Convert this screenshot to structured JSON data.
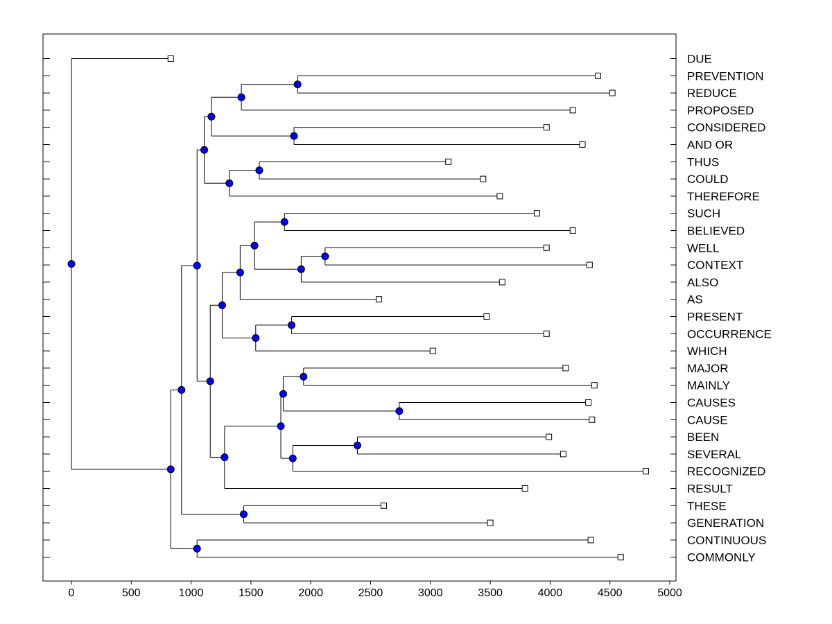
{
  "chart_data": {
    "type": "dendrogram",
    "title": "",
    "xlabel": "",
    "ylabel": "",
    "xlim": [
      -240,
      5030
    ],
    "xticks": [
      0,
      500,
      1000,
      1500,
      2000,
      2500,
      3000,
      3500,
      4000,
      4500,
      5000
    ],
    "grid": false,
    "leaves": [
      {
        "label": "DUE",
        "x": 830
      },
      {
        "label": "PREVENTION",
        "x": 4400
      },
      {
        "label": "REDUCE",
        "x": 4520
      },
      {
        "label": "PROPOSED",
        "x": 4190
      },
      {
        "label": "CONSIDERED",
        "x": 3970
      },
      {
        "label": "AND OR",
        "x": 4270
      },
      {
        "label": "THUS",
        "x": 3150
      },
      {
        "label": "COULD",
        "x": 3440
      },
      {
        "label": "THEREFORE",
        "x": 3580
      },
      {
        "label": "SUCH",
        "x": 3890
      },
      {
        "label": "BELIEVED",
        "x": 4190
      },
      {
        "label": "WELL",
        "x": 3970
      },
      {
        "label": "CONTEXT",
        "x": 4330
      },
      {
        "label": "ALSO",
        "x": 3600
      },
      {
        "label": "AS",
        "x": 2570
      },
      {
        "label": "PRESENT",
        "x": 3470
      },
      {
        "label": "OCCURRENCE",
        "x": 3970
      },
      {
        "label": "WHICH",
        "x": 3020
      },
      {
        "label": "MAJOR",
        "x": 4130
      },
      {
        "label": "MAINLY",
        "x": 4370
      },
      {
        "label": "CAUSES",
        "x": 4320
      },
      {
        "label": "CAUSE",
        "x": 4350
      },
      {
        "label": "BEEN",
        "x": 3990
      },
      {
        "label": "SEVERAL",
        "x": 4110
      },
      {
        "label": "RECOGNIZED",
        "x": 4800
      },
      {
        "label": "RESULT",
        "x": 3790
      },
      {
        "label": "THESE",
        "x": 2610
      },
      {
        "label": "GENERATION",
        "x": 3500
      },
      {
        "label": "CONTINUOUS",
        "x": 4340
      },
      {
        "label": "COMMONLY",
        "x": 4590
      }
    ],
    "merges": [
      {
        "id": "n1",
        "x": 1890,
        "children": [
          "L1",
          "L2"
        ]
      },
      {
        "id": "n2",
        "x": 1420,
        "children": [
          "n1",
          "L3"
        ]
      },
      {
        "id": "n3",
        "x": 1860,
        "children": [
          "L4",
          "L5"
        ]
      },
      {
        "id": "n4",
        "x": 1170,
        "children": [
          "n2",
          "n3"
        ]
      },
      {
        "id": "n5",
        "x": 1570,
        "children": [
          "L6",
          "L7"
        ]
      },
      {
        "id": "n6",
        "x": 1320,
        "children": [
          "n5",
          "L8"
        ]
      },
      {
        "id": "n7",
        "x": 1110,
        "children": [
          "n4",
          "n6"
        ]
      },
      {
        "id": "n8",
        "x": 1780,
        "children": [
          "L9",
          "L10"
        ]
      },
      {
        "id": "n9",
        "x": 2120,
        "children": [
          "L11",
          "L12"
        ]
      },
      {
        "id": "n10",
        "x": 1920,
        "children": [
          "n9",
          "L13"
        ]
      },
      {
        "id": "n11",
        "x": 1530,
        "children": [
          "n8",
          "n10"
        ]
      },
      {
        "id": "n12",
        "x": 1410,
        "children": [
          "n11",
          "L14"
        ]
      },
      {
        "id": "n13",
        "x": 1840,
        "children": [
          "L15",
          "L16"
        ]
      },
      {
        "id": "n14",
        "x": 1540,
        "children": [
          "n13",
          "L17"
        ]
      },
      {
        "id": "n15",
        "x": 1260,
        "children": [
          "n12",
          "n14"
        ]
      },
      {
        "id": "n16",
        "x": 1940,
        "children": [
          "L18",
          "L19"
        ]
      },
      {
        "id": "n17",
        "x": 2740,
        "children": [
          "L20",
          "L21"
        ]
      },
      {
        "id": "n18",
        "x": 1770,
        "children": [
          "n16",
          "n17"
        ]
      },
      {
        "id": "n19",
        "x": 2390,
        "children": [
          "L22",
          "L23"
        ]
      },
      {
        "id": "n20",
        "x": 1850,
        "children": [
          "n19",
          "L24"
        ]
      },
      {
        "id": "n21",
        "x": 1750,
        "children": [
          "n18",
          "n20"
        ]
      },
      {
        "id": "n22",
        "x": 1280,
        "children": [
          "n21",
          "L25"
        ]
      },
      {
        "id": "n23",
        "x": 1160,
        "children": [
          "n15",
          "n22"
        ]
      },
      {
        "id": "n24",
        "x": 1050,
        "children": [
          "n7",
          "n23"
        ]
      },
      {
        "id": "n25",
        "x": 1440,
        "children": [
          "L26",
          "L27"
        ]
      },
      {
        "id": "n26",
        "x": 920,
        "children": [
          "n24",
          "n25"
        ]
      },
      {
        "id": "n27",
        "x": 1050,
        "children": [
          "L28",
          "L29"
        ]
      },
      {
        "id": "n28",
        "x": 830,
        "children": [
          "n26",
          "n27"
        ]
      },
      {
        "id": "n29",
        "x": 0,
        "children": [
          "L0",
          "n28"
        ]
      }
    ],
    "colors": {
      "node_fill": "#0000ff",
      "line": "#000000",
      "leaf_fill": "#ffffff",
      "background": "#ffffff"
    }
  }
}
